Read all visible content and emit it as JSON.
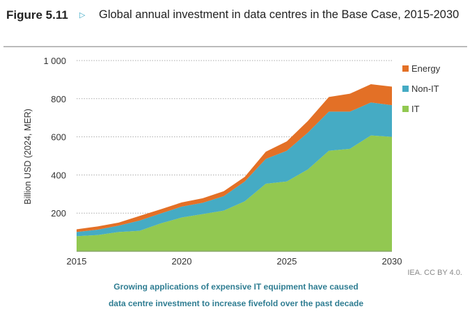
{
  "header": {
    "figure_label": "Figure 5.11",
    "title": "Global annual investment in data centres in the Base Case, 2015-2030"
  },
  "chart_data": {
    "type": "area",
    "stacked": true,
    "ylabel": "Billion USD (2024, MER)",
    "xlabel": "",
    "x": [
      2015,
      2016,
      2017,
      2018,
      2019,
      2020,
      2021,
      2022,
      2023,
      2024,
      2025,
      2026,
      2027,
      2028,
      2029,
      2030
    ],
    "xticks": [
      "2015",
      "2020",
      "2025",
      "2030"
    ],
    "yticks": [
      "200",
      "400",
      "600",
      "800",
      "1 000"
    ],
    "ylim": [
      0,
      1000
    ],
    "grid": true,
    "legend_position": "right",
    "series": [
      {
        "name": "IT",
        "color": "#92c851",
        "values": [
          79,
          85,
          101,
          107,
          146,
          177,
          195,
          213,
          262,
          354,
          366,
          429,
          527,
          537,
          607,
          600
        ]
      },
      {
        "name": "Non-IT",
        "color": "#45abc4",
        "values": [
          22,
          28,
          33,
          54,
          52,
          57,
          59,
          76,
          104,
          130,
          161,
          193,
          205,
          195,
          173,
          166
        ]
      },
      {
        "name": "Energy",
        "color": "#e37026",
        "values": [
          14,
          17,
          16,
          24,
          22,
          22,
          24,
          26,
          24,
          38,
          49,
          61,
          77,
          94,
          96,
          97
        ]
      }
    ],
    "legend_order": [
      "Energy",
      "Non-IT",
      "IT"
    ]
  },
  "footer": {
    "license": "IEA. CC BY 4.0.",
    "caption_line1": "Growing applications of expensive IT equipment have caused",
    "caption_line2": "data centre investment to increase fivefold over the past decade"
  }
}
